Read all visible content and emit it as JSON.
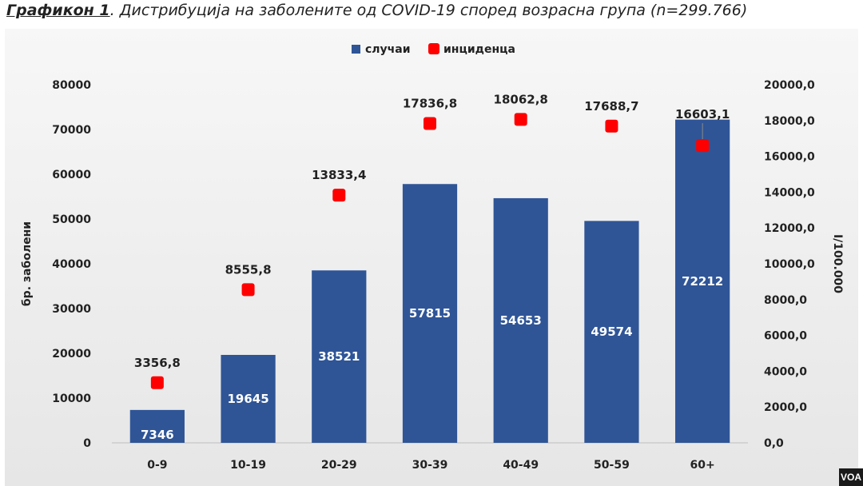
{
  "title": {
    "lead": "Графикон 1",
    "rest": ". Дистрибуција на заболените од COVID-19 според возрасна група (n=299.766)"
  },
  "watermark": "VOA",
  "chart_data": {
    "type": "bar",
    "categories": [
      "0-9",
      "10-19",
      "20-29",
      "30-39",
      "40-49",
      "50-59",
      "60+"
    ],
    "series": [
      {
        "name": "случаи",
        "type": "bar",
        "axis": "left",
        "color": "#2f5597",
        "values": [
          7346,
          19645,
          38521,
          57815,
          54653,
          49574,
          72212
        ],
        "labels": [
          "7346",
          "19645",
          "38521",
          "57815",
          "54653",
          "49574",
          "72212"
        ]
      },
      {
        "name": "инциденца",
        "type": "scatter",
        "axis": "right",
        "color": "#ff0000",
        "values": [
          3356.8,
          8555.8,
          13833.4,
          17836.8,
          18062.8,
          17688.7,
          16603.1
        ],
        "labels": [
          "3356,8",
          "8555,8",
          "13833,4",
          "17836,8",
          "18062,8",
          "17688,7",
          "16603,1"
        ]
      }
    ],
    "ylabel": "бр. заболени",
    "y2label": "I/100.000",
    "ylim": [
      0,
      80000
    ],
    "y2lim": [
      0,
      20000
    ],
    "yticks": [
      "0",
      "10000",
      "20000",
      "30000",
      "40000",
      "50000",
      "60000",
      "70000",
      "80000"
    ],
    "y2ticks": [
      "0,0",
      "2000,0",
      "4000,0",
      "6000,0",
      "8000,0",
      "10000,0",
      "12000,0",
      "14000,0",
      "16000,0",
      "18000,0",
      "20000,0"
    ],
    "legend": "top-center",
    "grid": false
  }
}
